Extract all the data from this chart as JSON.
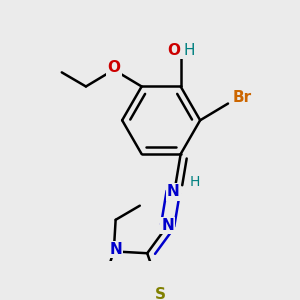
{
  "bg_color": "#ebebeb",
  "bond_color": "#000000",
  "bond_width": 1.8,
  "atoms": {
    "O": {
      "color": "#cc0000"
    },
    "N": {
      "color": "#0000cc"
    },
    "S": {
      "color": "#808000"
    },
    "Br": {
      "color": "#cc6600"
    },
    "H": {
      "color": "#008080"
    },
    "C": {
      "color": "#000000"
    }
  },
  "font_size": 10
}
